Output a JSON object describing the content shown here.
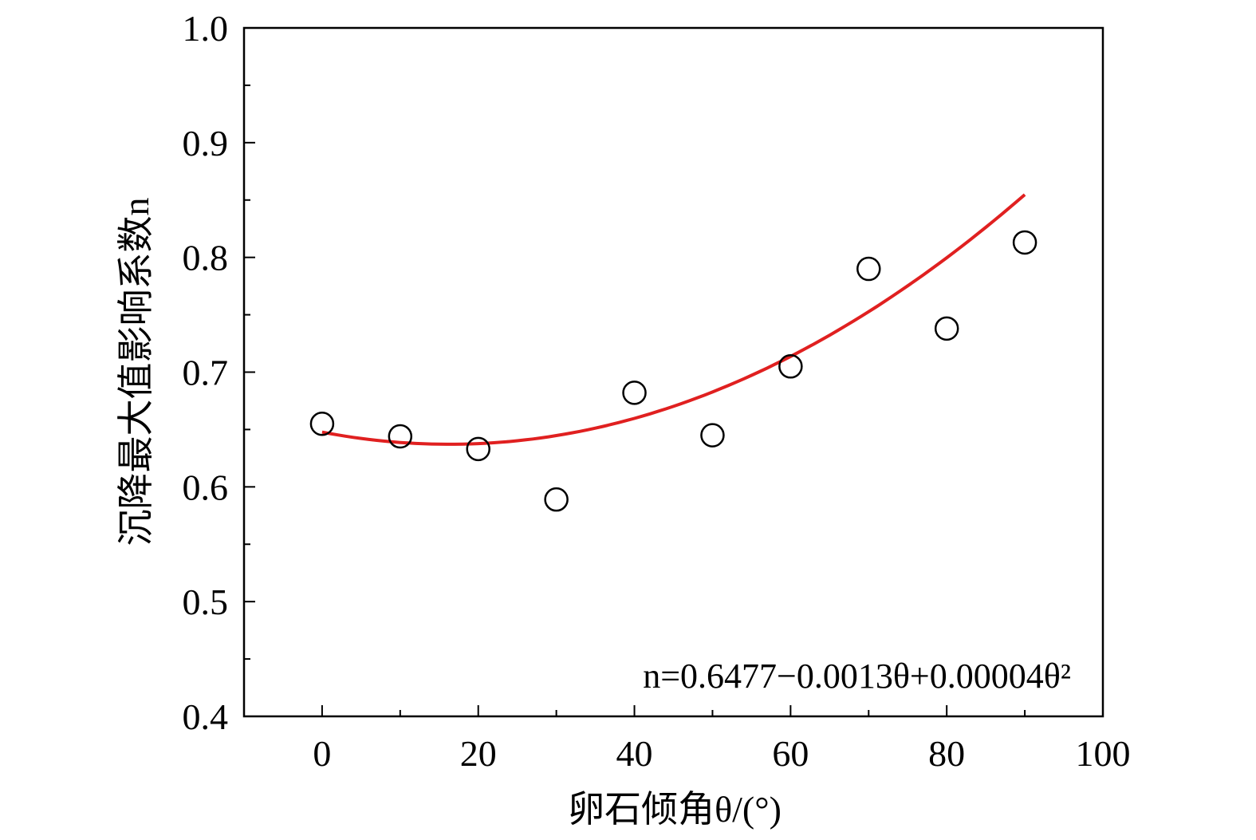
{
  "chart_data": {
    "type": "scatter",
    "title": "",
    "xlabel": "卵石倾角θ/(°)",
    "ylabel": "沉降最大值影响系数n",
    "xlim": [
      -10,
      100
    ],
    "ylim": [
      0.4,
      1.0
    ],
    "x_ticks": [
      "0",
      "20",
      "40",
      "60",
      "80",
      "100"
    ],
    "y_ticks": [
      "0.4",
      "0.5",
      "0.6",
      "0.7",
      "0.8",
      "0.9",
      "1.0"
    ],
    "grid": false,
    "points": {
      "x": [
        0,
        10,
        20,
        30,
        40,
        50,
        60,
        70,
        80,
        90
      ],
      "y": [
        0.655,
        0.644,
        0.633,
        0.589,
        0.682,
        0.645,
        0.705,
        0.79,
        0.738,
        0.813
      ]
    },
    "fit": {
      "coefficients": [
        0.6477,
        -0.0013,
        4e-05
      ],
      "x_range": [
        0,
        90
      ],
      "equation_text": "n=0.6477−0.0013θ+0.00004θ²",
      "color": "#e02020"
    },
    "marker_color": "#000000"
  }
}
